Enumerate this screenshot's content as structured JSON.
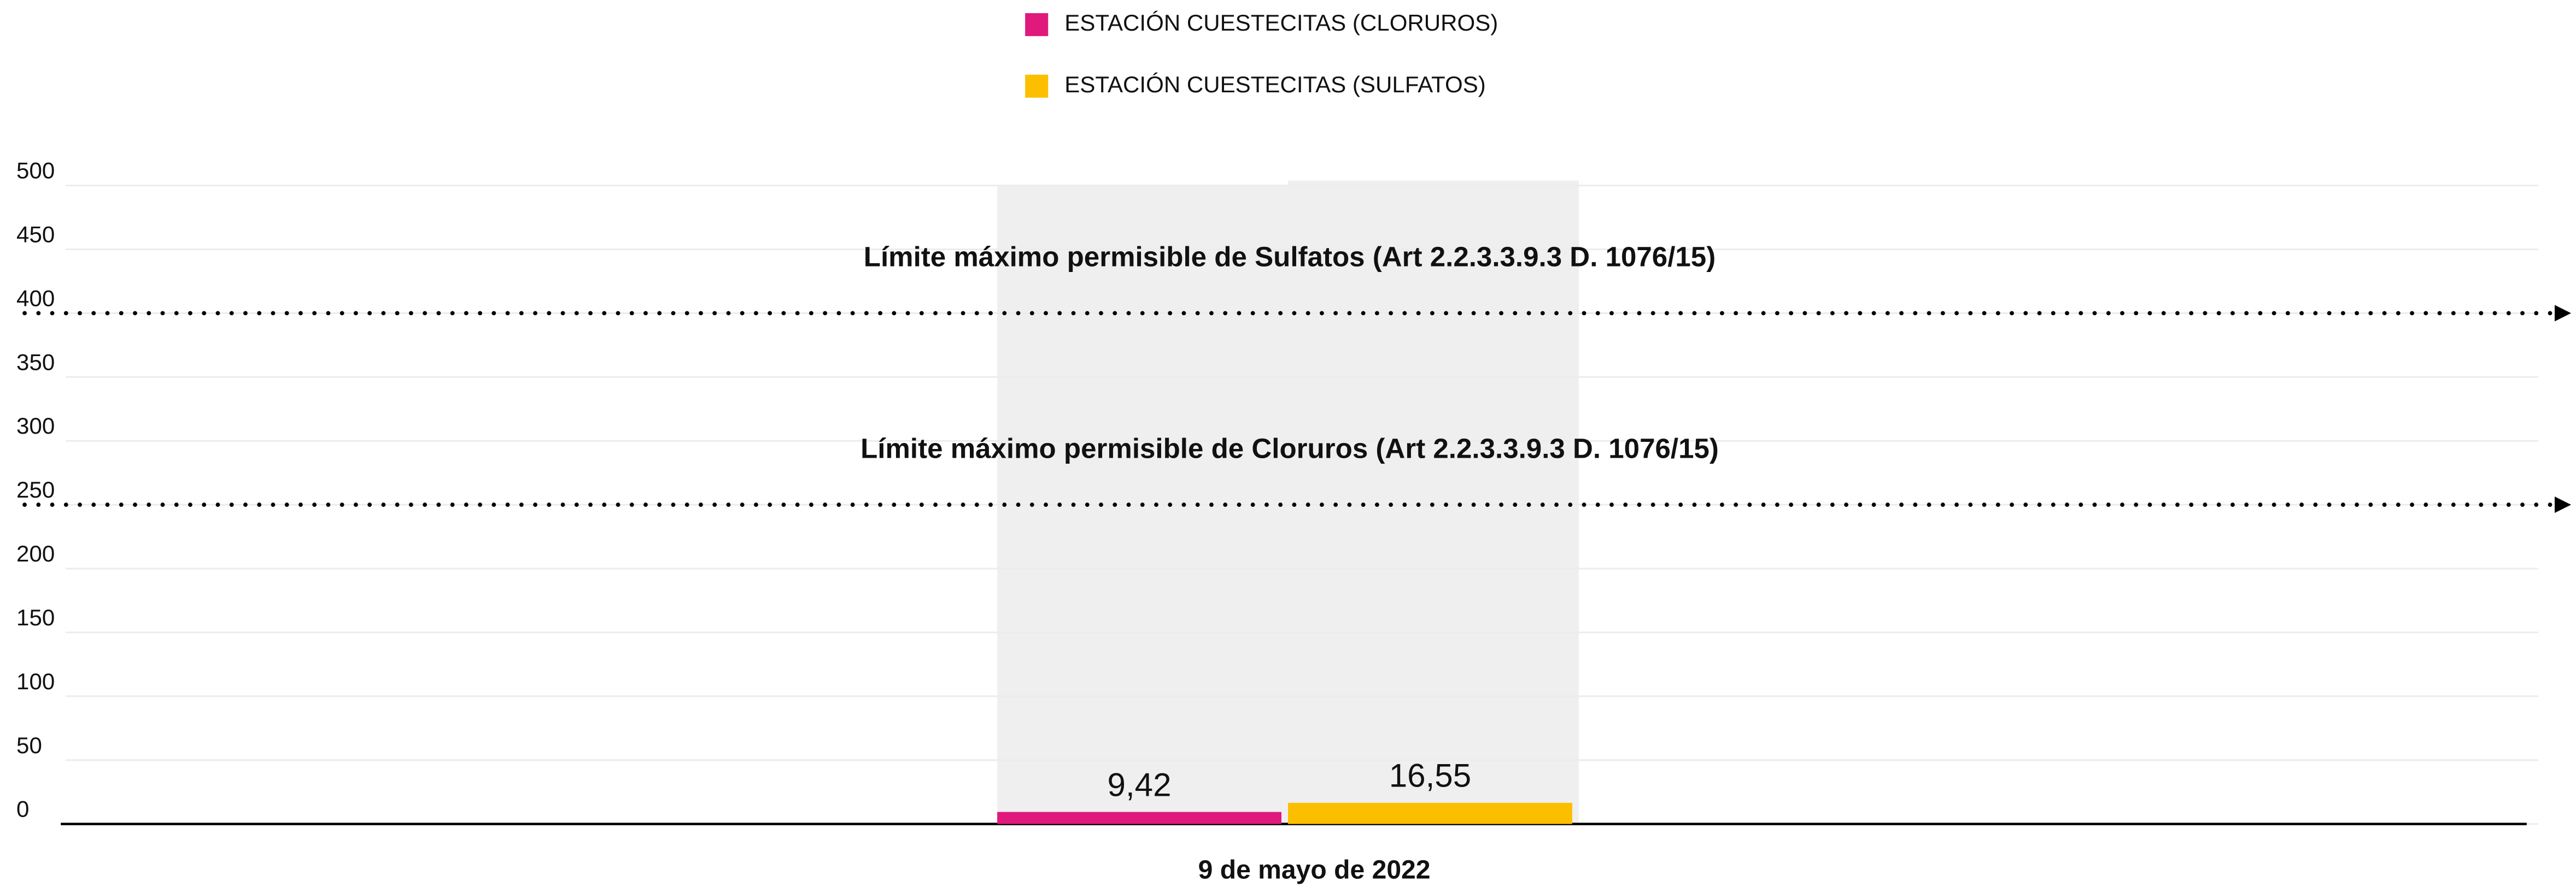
{
  "chart_data": {
    "type": "bar",
    "categories": [
      "9 de mayo de 2022"
    ],
    "series": [
      {
        "name": "ESTACIÓN CUESTECITAS (CLORUROS)",
        "color": "#e0197d",
        "values": [
          9.42
        ],
        "value_labels": [
          "9,42"
        ]
      },
      {
        "name": "ESTACIÓN CUESTECITAS (SULFATOS)",
        "color": "#fbbf00",
        "values": [
          16.55
        ],
        "value_labels": [
          "16,55"
        ]
      }
    ],
    "ylim": [
      0,
      500
    ],
    "yticks": [
      0,
      50,
      100,
      150,
      200,
      250,
      300,
      350,
      400,
      450,
      500
    ],
    "grid": true,
    "legend": "top",
    "reference_lines": [
      {
        "value": 400,
        "label": "Límite máximo permisible de Sulfatos (Art 2.2.3.3.9.3 D. 1076/15)"
      },
      {
        "value": 250,
        "label": "Límite máximo permisible de Cloruros (Art 2.2.3.3.9.3 D. 1076/15)"
      }
    ]
  }
}
